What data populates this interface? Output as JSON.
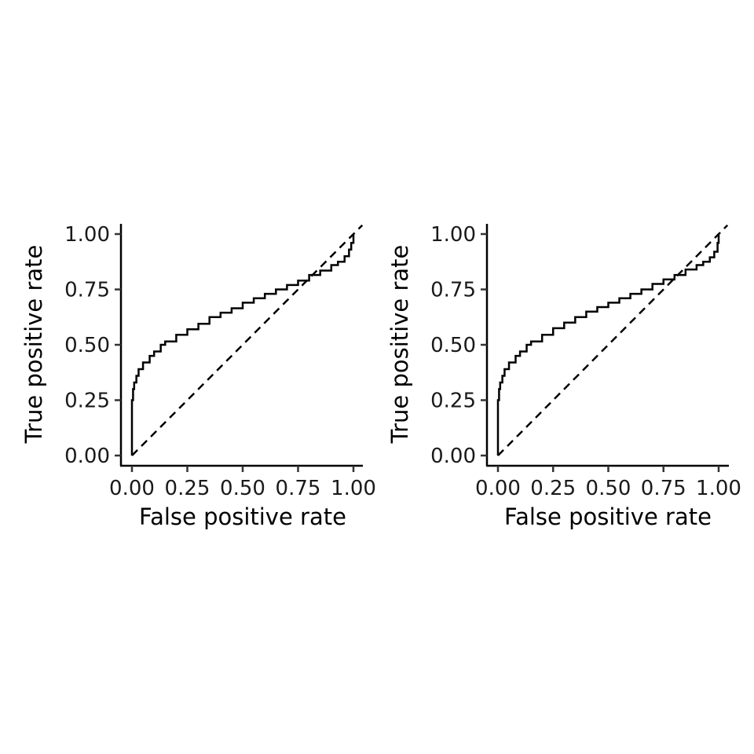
{
  "chart_data": [
    {
      "type": "line",
      "xlabel": "False positive rate",
      "ylabel": "True positive rate",
      "xlim": [
        0,
        1
      ],
      "ylim": [
        0,
        1
      ],
      "x_ticks": [
        "0.00",
        "0.25",
        "0.50",
        "0.75",
        "1.00"
      ],
      "y_ticks": [
        "0.00",
        "0.25",
        "0.50",
        "0.75",
        "1.00"
      ],
      "grid": false,
      "series": [
        {
          "style": "step",
          "color": "#000000",
          "points": [
            [
              0,
              0
            ],
            [
              0,
              0.25
            ],
            [
              0.005,
              0.3
            ],
            [
              0.01,
              0.33
            ],
            [
              0.02,
              0.36
            ],
            [
              0.03,
              0.39
            ],
            [
              0.05,
              0.42
            ],
            [
              0.08,
              0.45
            ],
            [
              0.1,
              0.47
            ],
            [
              0.13,
              0.5
            ],
            [
              0.15,
              0.515
            ],
            [
              0.2,
              0.545
            ],
            [
              0.25,
              0.57
            ],
            [
              0.3,
              0.595
            ],
            [
              0.35,
              0.625
            ],
            [
              0.4,
              0.645
            ],
            [
              0.45,
              0.665
            ],
            [
              0.5,
              0.69
            ],
            [
              0.55,
              0.71
            ],
            [
              0.6,
              0.73
            ],
            [
              0.65,
              0.75
            ],
            [
              0.7,
              0.77
            ],
            [
              0.75,
              0.79
            ],
            [
              0.8,
              0.815
            ],
            [
              0.85,
              0.835
            ],
            [
              0.9,
              0.86
            ],
            [
              0.93,
              0.875
            ],
            [
              0.96,
              0.9
            ],
            [
              0.98,
              0.93
            ],
            [
              0.99,
              0.96
            ],
            [
              1,
              1
            ]
          ]
        },
        {
          "style": "dashed",
          "color": "#000000",
          "points": [
            [
              0,
              0
            ],
            [
              1.04,
              1.04
            ]
          ]
        }
      ]
    },
    {
      "type": "line",
      "xlabel": "False positive rate",
      "ylabel": "True positive rate",
      "xlim": [
        0,
        1
      ],
      "ylim": [
        0,
        1
      ],
      "x_ticks": [
        "0.00",
        "0.25",
        "0.50",
        "0.75",
        "1.00"
      ],
      "y_ticks": [
        "0.00",
        "0.25",
        "0.50",
        "0.75",
        "1.00"
      ],
      "grid": false,
      "series": [
        {
          "style": "step",
          "color": "#000000",
          "points": [
            [
              0,
              0
            ],
            [
              0,
              0.25
            ],
            [
              0.005,
              0.3
            ],
            [
              0.01,
              0.33
            ],
            [
              0.02,
              0.36
            ],
            [
              0.03,
              0.39
            ],
            [
              0.05,
              0.42
            ],
            [
              0.08,
              0.45
            ],
            [
              0.1,
              0.47
            ],
            [
              0.13,
              0.5
            ],
            [
              0.15,
              0.515
            ],
            [
              0.2,
              0.545
            ],
            [
              0.25,
              0.575
            ],
            [
              0.3,
              0.6
            ],
            [
              0.35,
              0.625
            ],
            [
              0.4,
              0.65
            ],
            [
              0.45,
              0.67
            ],
            [
              0.5,
              0.69
            ],
            [
              0.55,
              0.71
            ],
            [
              0.6,
              0.73
            ],
            [
              0.65,
              0.75
            ],
            [
              0.7,
              0.775
            ],
            [
              0.75,
              0.795
            ],
            [
              0.8,
              0.815
            ],
            [
              0.85,
              0.84
            ],
            [
              0.9,
              0.86
            ],
            [
              0.93,
              0.875
            ],
            [
              0.96,
              0.895
            ],
            [
              0.98,
              0.92
            ],
            [
              0.995,
              0.96
            ],
            [
              1,
              1
            ]
          ]
        },
        {
          "style": "dashed",
          "color": "#000000",
          "points": [
            [
              0,
              0
            ],
            [
              1.04,
              1.04
            ]
          ]
        }
      ]
    }
  ]
}
